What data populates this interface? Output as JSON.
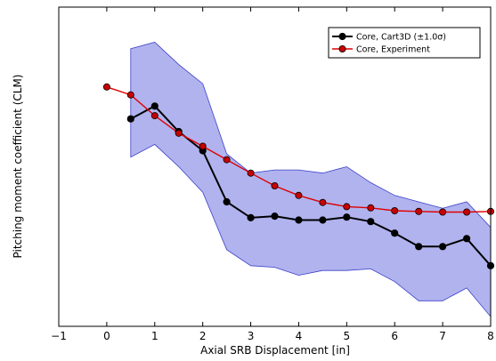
{
  "chart_data": {
    "type": "line",
    "title": "",
    "xlabel": "Axial SRB Displacement [in]",
    "ylabel": "Pitching moment coefficient (CLM)",
    "xlim": [
      -1,
      8
    ],
    "ylim": [
      0,
      1
    ],
    "xticks": [
      -1,
      0,
      1,
      2,
      3,
      4,
      5,
      6,
      7,
      8
    ],
    "xtick_labels": [
      "−1",
      "0",
      "1",
      "2",
      "3",
      "4",
      "5",
      "6",
      "7",
      "8"
    ],
    "yticks_shown": false,
    "grid": false,
    "legend_position": "top-right",
    "series": [
      {
        "name": "Core, Cart3D (±1.0σ)",
        "color": "#000000",
        "marker": "circle",
        "x": [
          0.5,
          1.0,
          1.5,
          2.0,
          2.5,
          3.0,
          3.5,
          4.0,
          4.5,
          5.0,
          5.5,
          6.0,
          6.5,
          7.0,
          7.5,
          8.0
        ],
        "y": [
          0.65,
          0.69,
          0.61,
          0.55,
          0.39,
          0.34,
          0.345,
          0.333,
          0.333,
          0.342,
          0.328,
          0.292,
          0.25,
          0.25,
          0.275,
          0.19
        ],
        "band_upper": [
          0.87,
          0.89,
          0.82,
          0.76,
          0.54,
          0.48,
          0.49,
          0.49,
          0.48,
          0.5,
          0.45,
          0.41,
          0.39,
          0.37,
          0.39,
          0.31
        ],
        "band_lower": [
          0.53,
          0.57,
          0.5,
          0.42,
          0.24,
          0.19,
          0.185,
          0.16,
          0.175,
          0.175,
          0.18,
          0.14,
          0.08,
          0.08,
          0.12,
          0.03
        ],
        "band_color": "#b0b3ee"
      },
      {
        "name": "Core, Experiment",
        "color": "#e00000",
        "marker_face": "#c80000",
        "marker": "circle",
        "x": [
          0.0,
          0.5,
          1.0,
          1.5,
          2.0,
          2.5,
          3.0,
          3.5,
          4.0,
          4.5,
          5.0,
          5.5,
          6.0,
          6.5,
          7.0,
          7.5,
          8.0
        ],
        "y": [
          0.75,
          0.725,
          0.66,
          0.605,
          0.564,
          0.522,
          0.48,
          0.44,
          0.41,
          0.388,
          0.375,
          0.371,
          0.362,
          0.36,
          0.358,
          0.358,
          0.36
        ]
      }
    ]
  }
}
